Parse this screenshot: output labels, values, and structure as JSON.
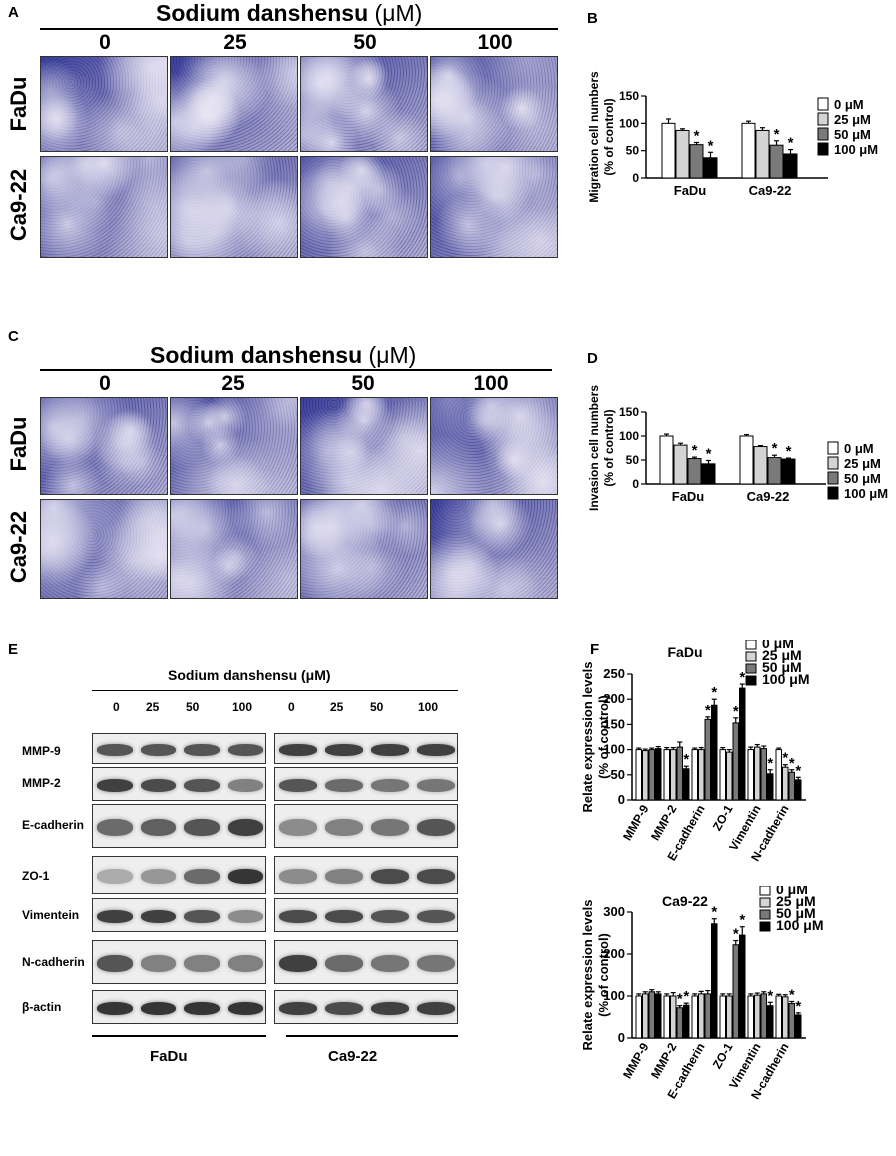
{
  "panel_letters": {
    "a": "A",
    "b": "B",
    "c": "C",
    "d": "D",
    "e": "E",
    "f": "F"
  },
  "migration": {
    "title_main": "Sodium danshensu",
    "title_unit": "(μM)",
    "concentrations": [
      "0",
      "25",
      "50",
      "100"
    ],
    "rows": [
      "FaDu",
      "Ca9-22"
    ]
  },
  "invasion": {
    "title_main": "Sodium danshensu",
    "title_unit": "(μM)",
    "concentrations": [
      "0",
      "25",
      "50",
      "100"
    ],
    "rows": [
      "FaDu",
      "Ca9-22"
    ]
  },
  "western": {
    "title": "Sodium danshensu (μM)",
    "concentrations": [
      "0",
      "25",
      "50",
      "100",
      "0",
      "25",
      "50",
      "100"
    ],
    "proteins": [
      "MMP-9",
      "MMP-2",
      "E-cadherin",
      "ZO-1",
      "Vimentein",
      "N-cadherin",
      "β-actin"
    ],
    "cell_lines": [
      "FaDu",
      "Ca9-22"
    ]
  },
  "colors": {
    "s0": "#ffffff",
    "s1": "#d4d4d4",
    "s2": "#7a7a7a",
    "s3": "#000000",
    "tile_dark": "#3a3f9e",
    "tile_light": "#b7b3d8"
  },
  "chart_data": [
    {
      "id": "B",
      "type": "bar",
      "ylabel": "Migration cell numbers (% of control)",
      "ylim": [
        0,
        150
      ],
      "yticks": [
        0,
        50,
        100,
        150
      ],
      "categories": [
        "FaDu",
        "Ca9-22"
      ],
      "legend": [
        "0 μM",
        "25 μM",
        "50 μM",
        "100 μM"
      ],
      "series": [
        {
          "name": "0 μM",
          "values": [
            100,
            100
          ],
          "err": [
            8,
            4
          ]
        },
        {
          "name": "25 μM",
          "values": [
            87,
            87
          ],
          "err": [
            3,
            5
          ]
        },
        {
          "name": "50 μM",
          "values": [
            61,
            60
          ],
          "err": [
            4,
            8
          ]
        },
        {
          "name": "100 μM",
          "values": [
            37,
            44
          ],
          "err": [
            10,
            8
          ]
        }
      ],
      "stars": [
        [
          false,
          false
        ],
        [
          false,
          false
        ],
        [
          true,
          true
        ],
        [
          true,
          true
        ]
      ]
    },
    {
      "id": "D",
      "type": "bar",
      "ylabel": "Invasion cell numbers (% of control)",
      "ylim": [
        0,
        150
      ],
      "yticks": [
        0,
        50,
        100,
        150
      ],
      "categories": [
        "FaDu",
        "Ca9-22"
      ],
      "legend": [
        "0 μM",
        "25 μM",
        "50 μM",
        "100 μM"
      ],
      "series": [
        {
          "name": "0 μM",
          "values": [
            100,
            100
          ],
          "err": [
            4,
            3
          ]
        },
        {
          "name": "25 μM",
          "values": [
            81,
            78
          ],
          "err": [
            4,
            2
          ]
        },
        {
          "name": "50 μM",
          "values": [
            53,
            55
          ],
          "err": [
            3,
            5
          ]
        },
        {
          "name": "100 μM",
          "values": [
            42,
            52
          ],
          "err": [
            7,
            2
          ]
        }
      ],
      "stars": [
        [
          false,
          false
        ],
        [
          false,
          false
        ],
        [
          true,
          true
        ],
        [
          true,
          true
        ]
      ]
    },
    {
      "id": "F1",
      "type": "bar",
      "title": "FaDu",
      "ylabel": "Relate expression levels (% of control)",
      "ylim": [
        0,
        250
      ],
      "yticks": [
        0,
        50,
        100,
        150,
        200,
        250
      ],
      "categories": [
        "MMP-9",
        "MMP-2",
        "E-cadherin",
        "ZO-1",
        "Vimentin",
        "N-cadherin"
      ],
      "legend": [
        "0 μM",
        "25 μM",
        "50 μM",
        "100 μM"
      ],
      "series": [
        {
          "name": "0 μM",
          "values": [
            100,
            100,
            100,
            100,
            100,
            100
          ],
          "err": [
            3,
            4,
            3,
            4,
            5,
            3
          ]
        },
        {
          "name": "25 μM",
          "values": [
            98,
            100,
            100,
            95,
            105,
            65
          ],
          "err": [
            3,
            4,
            4,
            5,
            5,
            5
          ]
        },
        {
          "name": "50 μM",
          "values": [
            100,
            105,
            160,
            153,
            102,
            55
          ],
          "err": [
            3,
            10,
            5,
            10,
            5,
            5
          ]
        },
        {
          "name": "100 μM",
          "values": [
            102,
            62,
            188,
            222,
            52,
            40
          ],
          "err": [
            4,
            5,
            12,
            8,
            8,
            5
          ]
        }
      ],
      "stars": [
        [
          false,
          false,
          false,
          false,
          false,
          false
        ],
        [
          false,
          false,
          false,
          false,
          false,
          true
        ],
        [
          false,
          false,
          true,
          true,
          false,
          true
        ],
        [
          false,
          true,
          true,
          true,
          true,
          true
        ]
      ]
    },
    {
      "id": "F2",
      "type": "bar",
      "title": "Ca9-22",
      "ylabel": "Relate expression levels (% of control)",
      "ylim": [
        0,
        300
      ],
      "yticks": [
        0,
        100,
        200,
        300
      ],
      "categories": [
        "MMP-9",
        "MMP-2",
        "E-cadherin",
        "ZO-1",
        "Vimentin",
        "N-cadherin"
      ],
      "legend": [
        "0 μM",
        "25 μM",
        "50 μM",
        "100 μM"
      ],
      "series": [
        {
          "name": "0 μM",
          "values": [
            100,
            100,
            100,
            100,
            100,
            100
          ],
          "err": [
            5,
            5,
            5,
            5,
            5,
            4
          ]
        },
        {
          "name": "25 μM",
          "values": [
            105,
            100,
            105,
            100,
            102,
            98
          ],
          "err": [
            5,
            8,
            6,
            5,
            5,
            5
          ]
        },
        {
          "name": "50 μM",
          "values": [
            110,
            72,
            105,
            222,
            105,
            82
          ],
          "err": [
            5,
            5,
            8,
            10,
            5,
            5
          ]
        },
        {
          "name": "100 μM",
          "values": [
            105,
            78,
            272,
            245,
            77,
            55
          ],
          "err": [
            5,
            5,
            12,
            20,
            8,
            5
          ]
        }
      ],
      "stars": [
        [
          false,
          false,
          false,
          false,
          false,
          false
        ],
        [
          false,
          false,
          false,
          false,
          false,
          false
        ],
        [
          false,
          true,
          false,
          true,
          false,
          true
        ],
        [
          false,
          true,
          true,
          true,
          true,
          true
        ]
      ]
    }
  ]
}
